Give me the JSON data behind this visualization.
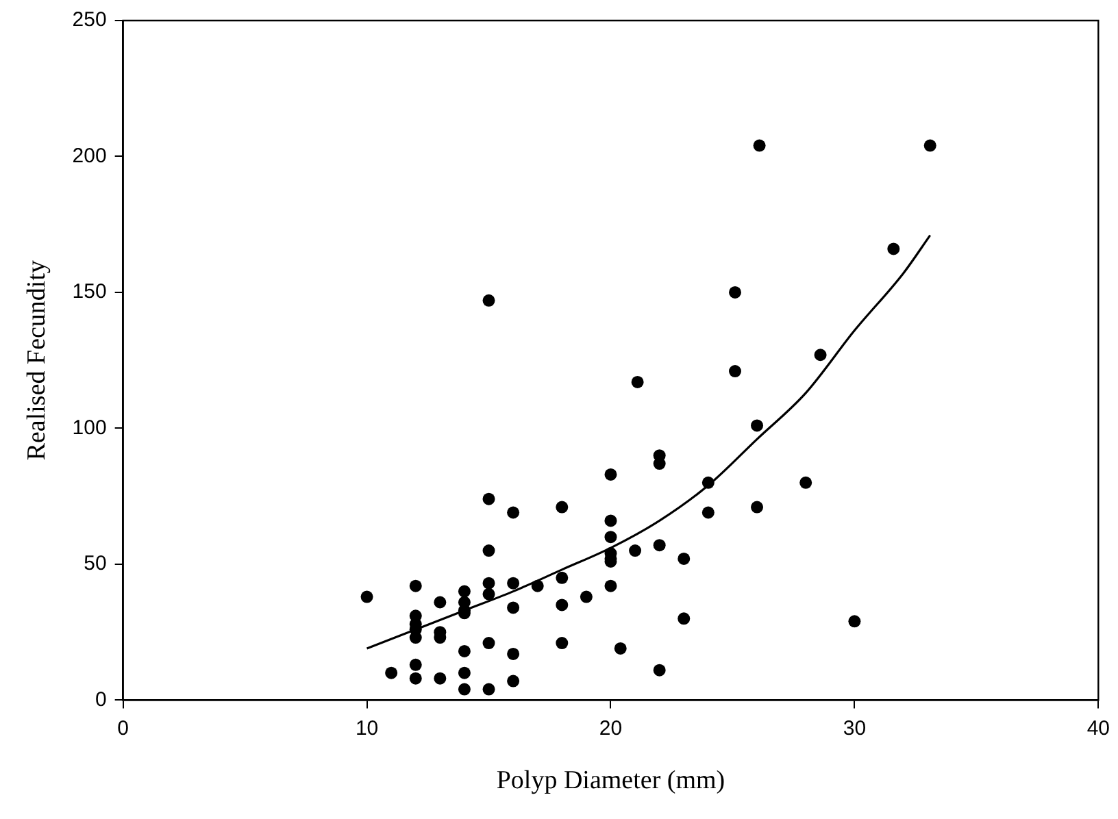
{
  "chart_data": {
    "type": "scatter",
    "xlabel": "Polyp Diameter (mm)",
    "ylabel": "Realised Fecundity",
    "xlim": [
      0,
      40
    ],
    "xticks": [
      0,
      10,
      20,
      30,
      40
    ],
    "ylim": [
      0,
      250
    ],
    "yticks": [
      0,
      50,
      100,
      150,
      200,
      250
    ],
    "grid": false,
    "legend": false,
    "marker": "circle",
    "series": [
      {
        "color": "#000000",
        "x": [
          10,
          11,
          12,
          12,
          12,
          12,
          12,
          12,
          12,
          13,
          13,
          13,
          13,
          14,
          14,
          14,
          14,
          14,
          14,
          14,
          15,
          15,
          15,
          15,
          15,
          15,
          15,
          16,
          16,
          16,
          16,
          16,
          17,
          18,
          18,
          18,
          18,
          19,
          20,
          20,
          20,
          20,
          20,
          20,
          20,
          20.4,
          21,
          21.1,
          22,
          22,
          22,
          22,
          23,
          23,
          24,
          24,
          25.1,
          25.1,
          26,
          26,
          26.1,
          28,
          28.6,
          30,
          31.6,
          33.1
        ],
        "values": [
          38,
          10,
          42,
          31,
          28,
          26,
          23,
          13,
          8,
          36,
          25,
          23,
          8,
          40,
          36,
          33,
          32,
          18,
          10,
          4,
          74,
          55,
          43,
          39,
          21,
          4,
          147,
          69,
          43,
          34,
          17,
          7,
          42,
          71,
          45,
          35,
          21,
          38,
          83,
          66,
          60,
          54,
          52,
          51,
          42,
          19,
          55,
          117,
          90,
          87,
          57,
          11,
          52,
          30,
          80,
          69,
          150,
          121,
          101,
          71,
          204,
          80,
          127,
          29,
          166,
          204
        ]
      },
      {
        "type": "line",
        "color": "#000000",
        "marker": "none",
        "line_style": "solid",
        "x": [
          10,
          12,
          14,
          16,
          18,
          20,
          22,
          24,
          26,
          28,
          30,
          32,
          33.1
        ],
        "values": [
          19,
          26,
          33,
          40,
          48,
          56,
          66,
          79,
          96,
          113,
          136,
          157,
          171
        ]
      }
    ]
  }
}
